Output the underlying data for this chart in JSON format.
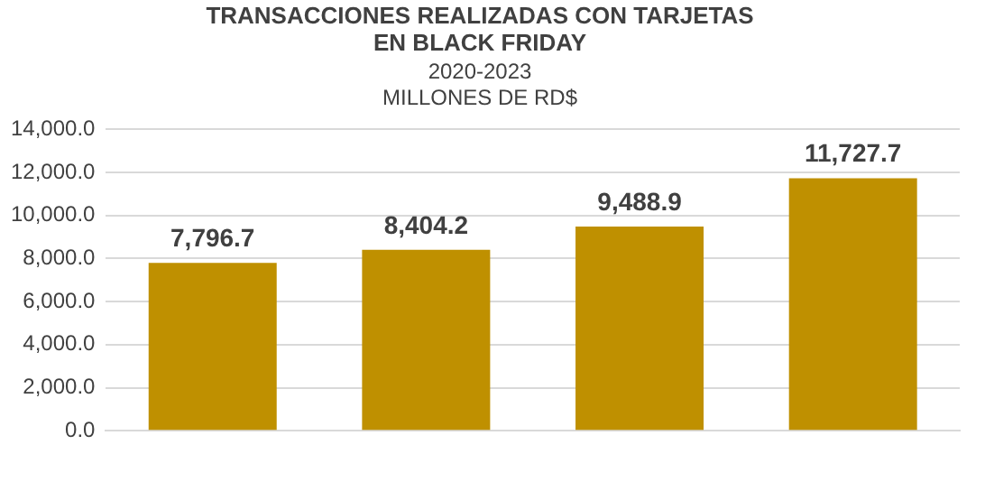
{
  "chart_data": {
    "type": "bar",
    "title": "TRANSACCIONES REALIZADAS CON TARJETAS\nEN BLACK FRIDAY",
    "subtitle": "2020-2023\nMILLONES DE RD$",
    "categories": [
      null,
      null,
      null,
      null
    ],
    "values": [
      7796.7,
      8404.2,
      9488.9,
      11727.7
    ],
    "value_labels": [
      "7,796.7",
      "8,404.2",
      "9,488.9",
      "11,727.7"
    ],
    "color": "#bf9000",
    "ylim": [
      0,
      14000
    ],
    "yticks": [
      {
        "value": 0,
        "label": "0.0"
      },
      {
        "value": 2000,
        "label": "2,000.0"
      },
      {
        "value": 4000,
        "label": "4,000.0"
      },
      {
        "value": 6000,
        "label": "6,000.0"
      },
      {
        "value": 8000,
        "label": "8,000.0"
      },
      {
        "value": 10000,
        "label": "10,000.0"
      },
      {
        "value": 12000,
        "label": "12,000.0"
      },
      {
        "value": 14000,
        "label": "14,000.0"
      }
    ],
    "grid": "y",
    "legend": false
  }
}
